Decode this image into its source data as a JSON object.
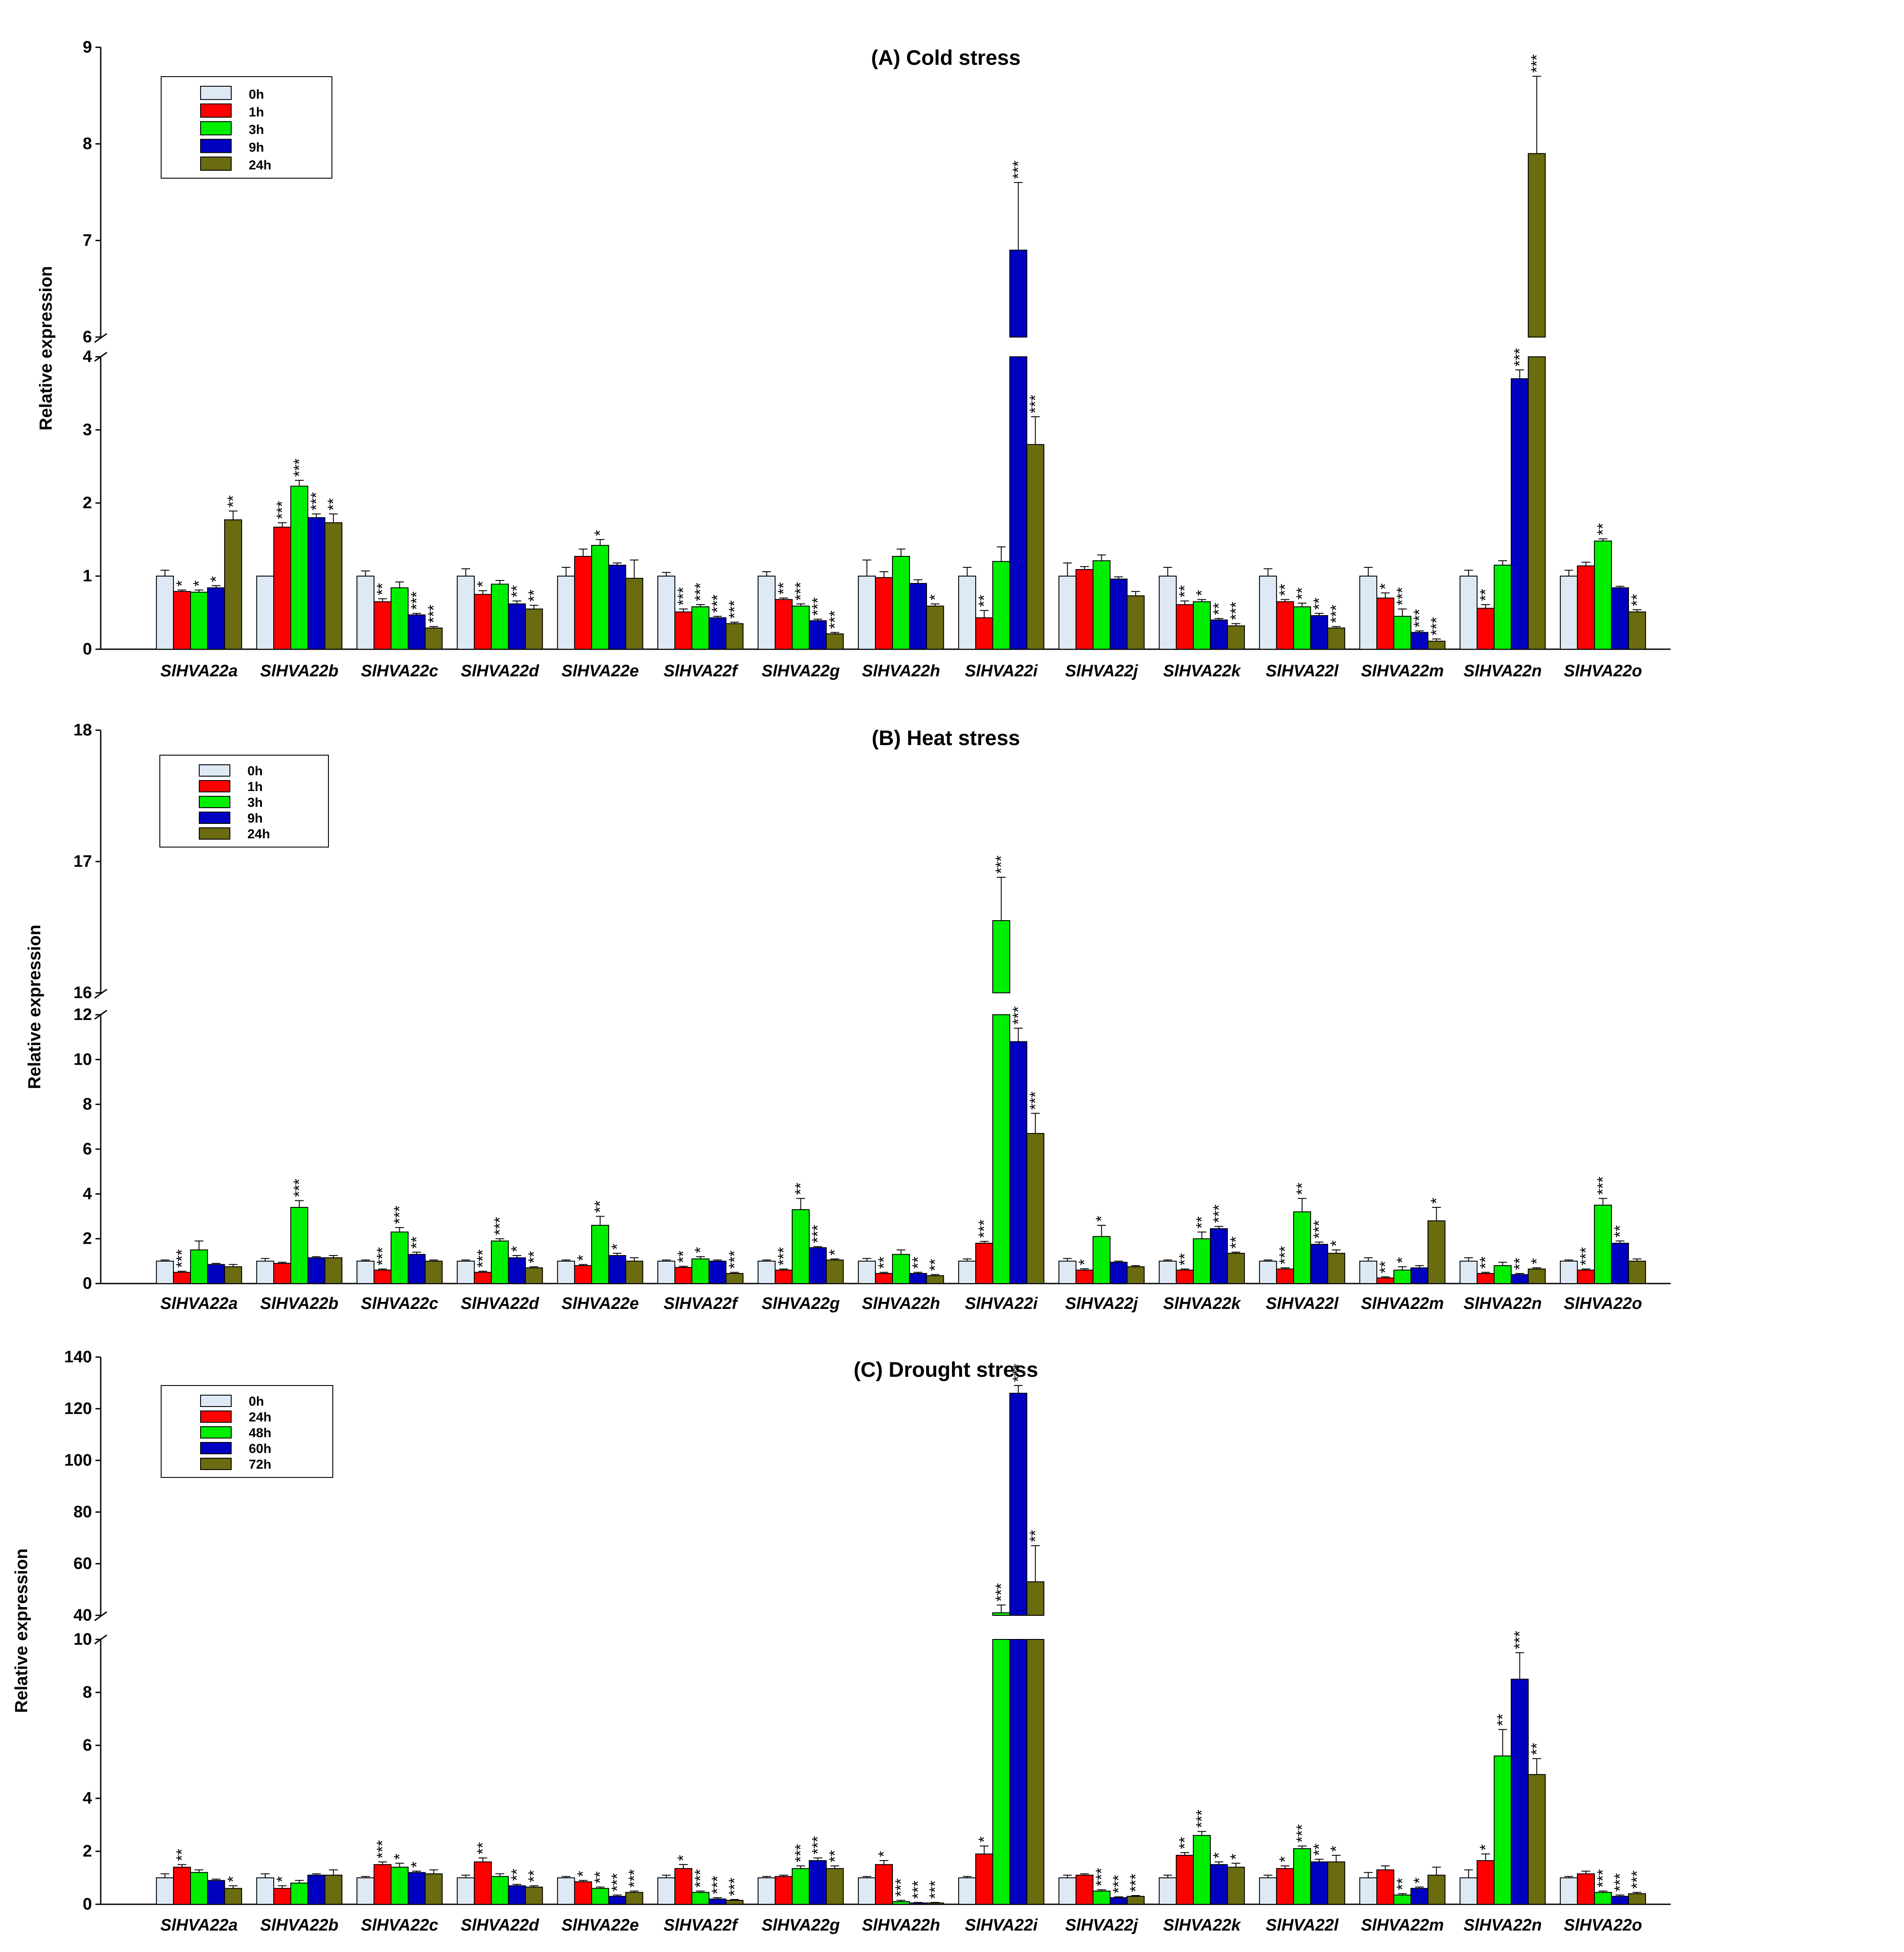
{
  "chart_data": [
    {
      "type": "bar",
      "title": "(A) Cold stress",
      "ylabel": "Relative expression",
      "axis_break": {
        "lower_range": [
          0,
          4
        ],
        "upper_range": [
          6,
          9
        ]
      },
      "lower_ticks": [
        "0",
        "1",
        "2",
        "3",
        "4"
      ],
      "upper_ticks": [
        "6",
        "7",
        "8",
        "9"
      ],
      "legend_position": "top-left",
      "categories": [
        "SlHVA22a",
        "SlHVA22b",
        "SlHVA22c",
        "SlHVA22d",
        "SlHVA22e",
        "SlHVA22f",
        "SlHVA22g",
        "SlHVA22h",
        "SlHVA22i",
        "SlHVA22j",
        "SlHVA22k",
        "SlHVA22l",
        "SlHVA22m",
        "SlHVA22n",
        "SlHVA22o"
      ],
      "series": [
        {
          "name": "0h",
          "color": "#dde9f5",
          "values": [
            1.0,
            1.0,
            1.0,
            1.0,
            1.0,
            1.0,
            1.0,
            1.0,
            1.0,
            1.0,
            1.0,
            1.0,
            1.0,
            1.0,
            1.0
          ],
          "errors": [
            0.08,
            0.0,
            0.07,
            0.1,
            0.12,
            0.05,
            0.06,
            0.22,
            0.12,
            0.18,
            0.12,
            0.1,
            0.12,
            0.08,
            0.08
          ],
          "sig": [
            "",
            "",
            "",
            "",
            "",
            "",
            "",
            "",
            "",
            "",
            "",
            "",
            "",
            "",
            ""
          ]
        },
        {
          "name": "1h",
          "color": "#ff0000",
          "values": [
            0.79,
            1.67,
            0.65,
            0.75,
            1.27,
            0.51,
            0.68,
            0.98,
            0.43,
            1.09,
            0.61,
            0.65,
            0.7,
            0.56,
            1.14
          ],
          "errors": [
            0.02,
            0.06,
            0.04,
            0.05,
            0.1,
            0.04,
            0.02,
            0.08,
            0.1,
            0.04,
            0.05,
            0.03,
            0.07,
            0.05,
            0.05
          ],
          "sig": [
            "*",
            "***",
            "**",
            "*",
            "",
            "***",
            "**",
            "",
            "**",
            "",
            "**",
            "**",
            "*",
            "**",
            ""
          ]
        },
        {
          "name": "3h",
          "color": "#00ee00",
          "values": [
            0.78,
            2.23,
            0.84,
            0.89,
            1.42,
            0.58,
            0.59,
            1.27,
            1.2,
            1.21,
            0.65,
            0.58,
            0.45,
            1.15,
            1.48
          ],
          "errors": [
            0.03,
            0.08,
            0.08,
            0.05,
            0.08,
            0.03,
            0.03,
            0.1,
            0.2,
            0.08,
            0.03,
            0.05,
            0.1,
            0.06,
            0.03
          ],
          "sig": [
            "*",
            "***",
            "",
            "",
            "*",
            "***",
            "***",
            "",
            "",
            "",
            "*",
            "**",
            "***",
            "",
            "**"
          ]
        },
        {
          "name": "9h",
          "color": "#0000c0",
          "values": [
            0.84,
            1.8,
            0.47,
            0.62,
            1.15,
            0.43,
            0.39,
            0.9,
            6.9,
            0.96,
            0.4,
            0.46,
            0.23,
            3.7,
            0.84
          ],
          "errors": [
            0.03,
            0.05,
            0.02,
            0.04,
            0.03,
            0.02,
            0.02,
            0.05,
            0.7,
            0.03,
            0.02,
            0.03,
            0.02,
            0.12,
            0.02
          ],
          "sig": [
            "*",
            "***",
            "***",
            "**",
            "",
            "***",
            "***",
            "",
            "***",
            "",
            "**",
            "**",
            "***",
            "***",
            ""
          ]
        },
        {
          "name": "24h",
          "color": "#6b6b10",
          "values": [
            1.77,
            1.73,
            0.29,
            0.55,
            0.97,
            0.35,
            0.21,
            0.59,
            2.8,
            0.73,
            0.32,
            0.29,
            0.11,
            7.9,
            0.51
          ],
          "errors": [
            0.12,
            0.12,
            0.02,
            0.05,
            0.25,
            0.02,
            0.02,
            0.03,
            0.38,
            0.06,
            0.03,
            0.02,
            0.03,
            0.8,
            0.03
          ],
          "sig": [
            "**",
            "**",
            "***",
            "**",
            "",
            "***",
            "***",
            "*",
            "***",
            "",
            "***",
            "***",
            "***",
            "***",
            "**"
          ]
        }
      ]
    },
    {
      "type": "bar",
      "title": "(B) Heat stress",
      "ylabel": "Relative expression",
      "axis_break": {
        "lower_range": [
          0,
          12
        ],
        "upper_range": [
          16,
          18
        ]
      },
      "lower_ticks": [
        "0",
        "2",
        "4",
        "6",
        "8",
        "10",
        "12"
      ],
      "upper_ticks": [
        "16",
        "17",
        "18"
      ],
      "legend_position": "top-left",
      "categories": [
        "SlHVA22a",
        "SlHVA22b",
        "SlHVA22c",
        "SlHVA22d",
        "SlHVA22e",
        "SlHVA22f",
        "SlHVA22g",
        "SlHVA22h",
        "SlHVA22i",
        "SlHVA22j",
        "SlHVA22k",
        "SlHVA22l",
        "SlHVA22m",
        "SlHVA22n",
        "SlHVA22o"
      ],
      "series": [
        {
          "name": "0h",
          "color": "#dde9f5",
          "values": [
            1.0,
            1.0,
            1.0,
            1.0,
            1.0,
            1.0,
            1.0,
            1.0,
            1.0,
            1.0,
            1.0,
            1.0,
            1.0,
            1.0,
            1.0
          ],
          "errors": [
            0.05,
            0.12,
            0.05,
            0.05,
            0.05,
            0.05,
            0.05,
            0.12,
            0.1,
            0.12,
            0.05,
            0.05,
            0.15,
            0.15,
            0.05
          ],
          "sig": [
            "",
            "",
            "",
            "",
            "",
            "",
            "",
            "",
            "",
            "",
            "",
            "",
            "",
            "",
            ""
          ]
        },
        {
          "name": "1h",
          "color": "#ff0000",
          "values": [
            0.5,
            0.9,
            0.6,
            0.5,
            0.8,
            0.72,
            0.6,
            0.45,
            1.8,
            0.6,
            0.6,
            0.65,
            0.25,
            0.45,
            0.6
          ],
          "errors": [
            0.05,
            0.05,
            0.05,
            0.05,
            0.05,
            0.05,
            0.05,
            0.05,
            0.08,
            0.06,
            0.05,
            0.05,
            0.05,
            0.05,
            0.05
          ],
          "sig": [
            "***",
            "",
            "***",
            "***",
            "*",
            "**",
            "***",
            "**",
            "***",
            "*",
            "**",
            "***",
            "**",
            "**",
            "***"
          ]
        },
        {
          "name": "3h",
          "color": "#00ee00",
          "values": [
            1.5,
            3.4,
            2.3,
            1.9,
            2.6,
            1.1,
            3.3,
            1.3,
            16.55,
            2.1,
            2.0,
            3.2,
            0.6,
            0.8,
            3.5
          ],
          "errors": [
            0.4,
            0.3,
            0.2,
            0.1,
            0.4,
            0.1,
            0.5,
            0.2,
            0.33,
            0.5,
            0.3,
            0.6,
            0.15,
            0.15,
            0.3
          ],
          "sig": [
            "",
            "***",
            "***",
            "***",
            "**",
            "*",
            "**",
            "",
            "***",
            "*",
            "**",
            "**",
            "*",
            "",
            "***"
          ]
        },
        {
          "name": "9h",
          "color": "#0000c0",
          "values": [
            0.85,
            1.15,
            1.3,
            1.15,
            1.25,
            1.0,
            1.6,
            0.45,
            10.8,
            0.95,
            2.45,
            1.75,
            0.7,
            0.4,
            1.8
          ],
          "errors": [
            0.05,
            0.05,
            0.1,
            0.1,
            0.1,
            0.05,
            0.05,
            0.05,
            0.6,
            0.05,
            0.1,
            0.1,
            0.1,
            0.05,
            0.1
          ],
          "sig": [
            "",
            "",
            "**",
            "*",
            "*",
            "",
            "***",
            "**",
            "***",
            "",
            "***",
            "***",
            "",
            "**",
            "**"
          ]
        },
        {
          "name": "24h",
          "color": "#6b6b10",
          "values": [
            0.75,
            1.15,
            1.0,
            0.7,
            1.0,
            0.45,
            1.05,
            0.35,
            6.7,
            0.75,
            1.35,
            1.35,
            2.8,
            0.65,
            1.0
          ],
          "errors": [
            0.1,
            0.1,
            0.05,
            0.05,
            0.15,
            0.05,
            0.05,
            0.05,
            0.9,
            0.05,
            0.05,
            0.15,
            0.6,
            0.05,
            0.1
          ],
          "sig": [
            "",
            "",
            "",
            "**",
            "",
            "***",
            "*",
            "**",
            "***",
            "",
            "**",
            "*",
            "*",
            "*",
            ""
          ]
        }
      ]
    },
    {
      "type": "bar",
      "title": "(C) Drought stress",
      "ylabel": "Relative expression",
      "axis_break": {
        "lower_range": [
          0,
          10
        ],
        "upper_range": [
          40,
          140
        ]
      },
      "lower_ticks": [
        "0",
        "2",
        "4",
        "6",
        "8",
        "10"
      ],
      "upper_ticks": [
        "40",
        "60",
        "80",
        "100",
        "120",
        "140"
      ],
      "legend_position": "top-left",
      "categories": [
        "SlHVA22a",
        "SlHVA22b",
        "SlHVA22c",
        "SlHVA22d",
        "SlHVA22e",
        "SlHVA22f",
        "SlHVA22g",
        "SlHVA22h",
        "SlHVA22i",
        "SlHVA22j",
        "SlHVA22k",
        "SlHVA22l",
        "SlHVA22m",
        "SlHVA22n",
        "SlHVA22o"
      ],
      "series": [
        {
          "name": "0h",
          "color": "#dde9f5",
          "values": [
            1.0,
            1.0,
            1.0,
            1.0,
            1.0,
            1.0,
            1.0,
            1.0,
            1.0,
            1.0,
            1.0,
            1.0,
            1.0,
            1.0,
            1.0
          ],
          "errors": [
            0.15,
            0.15,
            0.05,
            0.1,
            0.05,
            0.1,
            0.05,
            0.05,
            0.05,
            0.1,
            0.1,
            0.1,
            0.2,
            0.3,
            0.05
          ],
          "sig": [
            "",
            "",
            "",
            "",
            "",
            "",
            "",
            "",
            "",
            "",
            "",
            "",
            "",
            "",
            ""
          ]
        },
        {
          "name": "24h",
          "color": "#ff0000",
          "values": [
            1.4,
            0.6,
            1.5,
            1.6,
            0.85,
            1.35,
            1.05,
            1.5,
            1.9,
            1.1,
            1.85,
            1.35,
            1.3,
            1.65,
            1.15
          ],
          "errors": [
            0.1,
            0.1,
            0.1,
            0.15,
            0.05,
            0.15,
            0.05,
            0.15,
            0.3,
            0.05,
            0.1,
            0.1,
            0.15,
            0.25,
            0.1
          ],
          "sig": [
            "**",
            "*",
            "***",
            "**",
            "*",
            "*",
            "",
            "*",
            "*",
            "",
            "**",
            "*",
            "",
            "*",
            ""
          ]
        },
        {
          "name": "48h",
          "color": "#00ee00",
          "values": [
            1.2,
            0.8,
            1.4,
            1.05,
            0.6,
            0.45,
            1.35,
            0.1,
            41.0,
            0.5,
            2.6,
            2.1,
            0.35,
            5.6,
            0.45
          ],
          "errors": [
            0.1,
            0.1,
            0.15,
            0.1,
            0.05,
            0.05,
            0.1,
            0.05,
            3.0,
            0.05,
            0.15,
            0.1,
            0.05,
            1.0,
            0.05
          ],
          "sig": [
            "",
            "",
            "*",
            "",
            "**",
            "***",
            "***",
            "***",
            "***",
            "***",
            "***",
            "***",
            "**",
            "**",
            "***"
          ]
        },
        {
          "name": "60h",
          "color": "#0000c0",
          "values": [
            0.9,
            1.1,
            1.2,
            0.7,
            0.3,
            0.2,
            1.65,
            0.05,
            126.0,
            0.25,
            1.5,
            1.6,
            0.6,
            8.5,
            0.3
          ],
          "errors": [
            0.05,
            0.05,
            0.05,
            0.05,
            0.05,
            0.05,
            0.1,
            0.02,
            3.0,
            0.03,
            0.1,
            0.1,
            0.05,
            1.0,
            0.05
          ],
          "sig": [
            "",
            "",
            "*",
            "**",
            "***",
            "***",
            "***",
            "***",
            "***",
            "***",
            "*",
            "**",
            "*",
            "***",
            "***"
          ]
        },
        {
          "name": "72h",
          "color": "#6b6b10",
          "values": [
            0.6,
            1.1,
            1.15,
            0.65,
            0.45,
            0.15,
            1.35,
            0.05,
            53.0,
            0.3,
            1.4,
            1.6,
            1.1,
            4.9,
            0.4
          ],
          "errors": [
            0.1,
            0.2,
            0.15,
            0.05,
            0.05,
            0.03,
            0.1,
            0.02,
            14.0,
            0.03,
            0.15,
            0.25,
            0.3,
            0.6,
            0.05
          ],
          "sig": [
            "*",
            "",
            "",
            "**",
            "***",
            "***",
            "**",
            "***",
            "**",
            "***",
            "*",
            "*",
            "",
            "**",
            "***"
          ]
        }
      ]
    }
  ]
}
